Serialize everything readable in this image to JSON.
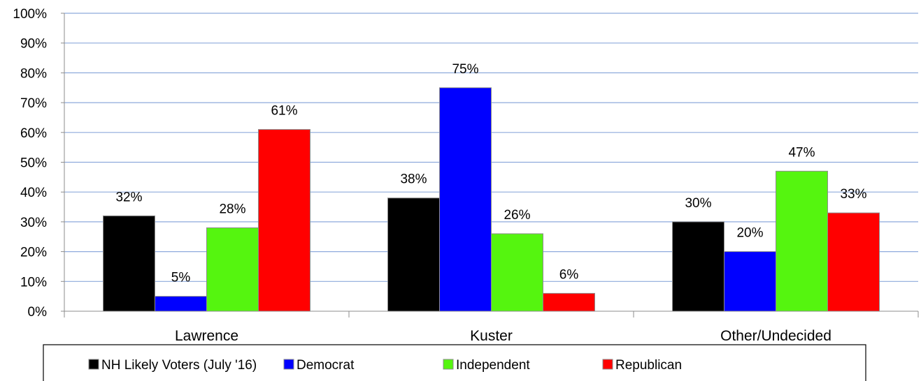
{
  "chart_data": {
    "type": "bar",
    "categories": [
      "Lawrence",
      "Kuster",
      "Other/Undecided"
    ],
    "series": [
      {
        "name": "NH Likely Voters (July '16)",
        "values": [
          32,
          38,
          30
        ],
        "color": "#000000"
      },
      {
        "name": "Democrat",
        "values": [
          5,
          75,
          20
        ],
        "color": "#0000ff"
      },
      {
        "name": "Independent",
        "values": [
          28,
          26,
          47
        ],
        "color": "#55f50f"
      },
      {
        "name": "Republican",
        "values": [
          61,
          6,
          33
        ],
        "color": "#ff0000"
      }
    ],
    "data_labels": [
      [
        "32%",
        "38%",
        "30%"
      ],
      [
        "5%",
        "75%",
        "20%"
      ],
      [
        "28%",
        "26%",
        "47%"
      ],
      [
        "61%",
        "6%",
        "33%"
      ]
    ],
    "y_ticks": [
      "0%",
      "10%",
      "20%",
      "30%",
      "40%",
      "50%",
      "60%",
      "70%",
      "80%",
      "90%",
      "100%"
    ],
    "ylim": [
      0,
      100
    ],
    "grid": true,
    "gridline_color": "#8eaadc",
    "legend_position": "bottom"
  }
}
